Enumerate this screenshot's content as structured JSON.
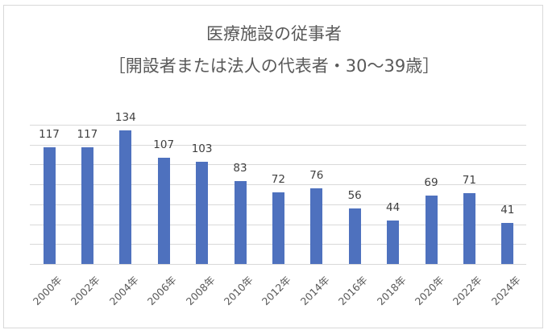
{
  "chart_data": {
    "type": "bar",
    "title": "医療施設の従事者",
    "subtitle": "［開設者または法人の代表者・30〜39歳］",
    "xlabel": "",
    "ylabel": "",
    "categories": [
      "2000年",
      "2002年",
      "2004年",
      "2006年",
      "2008年",
      "2010年",
      "2012年",
      "2014年",
      "2016年",
      "2018年",
      "2020年",
      "2022年",
      "2024年"
    ],
    "values": [
      117,
      117,
      134,
      107,
      103,
      83,
      72,
      76,
      56,
      44,
      69,
      71,
      41
    ],
    "ylim": [
      0,
      140
    ],
    "grid": true,
    "grid_step": 20,
    "legend": false,
    "bar_color": "#4e71be"
  }
}
